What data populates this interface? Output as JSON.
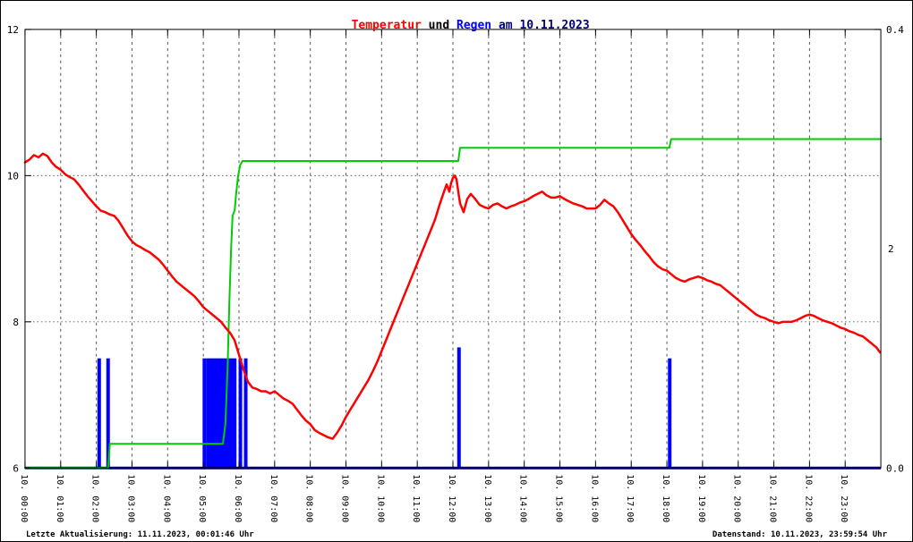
{
  "page": {
    "title_parts": [
      {
        "text": "Temperatur",
        "color": "#ff0000"
      },
      {
        "text": " und ",
        "color": "#000000"
      },
      {
        "text": "Regen",
        "color": "#0000ff"
      },
      {
        "text": " am 10.11.2023",
        "color": "#000080"
      }
    ],
    "footer_left": "Letzte Aktualisierung: 11.11.2023, 00:01:46 Uhr",
    "footer_right": "Datenstand: 10.11.2023, 23:59:54 Uhr"
  },
  "chart_data": {
    "type": "line",
    "title": "Temperatur und Regen am 10.11.2023",
    "grid": true,
    "legend": "none",
    "baseline_color": "#000080",
    "x": {
      "range_hours": [
        0,
        24
      ],
      "tick_labels": [
        "10. 00:00",
        "10. 01:00",
        "10. 02:00",
        "10. 03:00",
        "10. 04:00",
        "10. 05:00",
        "10. 06:00",
        "10. 07:00",
        "10. 08:00",
        "10. 09:00",
        "10. 10:00",
        "10. 11:00",
        "10. 12:00",
        "10. 13:00",
        "10. 14:00",
        "10. 15:00",
        "10. 16:00",
        "10. 17:00",
        "10. 18:00",
        "10. 19:00",
        "10. 20:00",
        "10. 21:00",
        "10. 22:00",
        "10. 23:00"
      ]
    },
    "y_left": {
      "range": [
        6,
        12
      ],
      "ticks": [
        6,
        8,
        10,
        12
      ],
      "grid": [
        8,
        10
      ]
    },
    "y_right": {
      "range_rain": [
        0,
        0.4
      ],
      "tick_top": "0.4",
      "tick_bottom": "0.0",
      "range_cumulative": [
        0,
        4
      ],
      "cumulative_tick": {
        "value": 2,
        "label": "2"
      }
    },
    "series": [
      {
        "name": "Regen",
        "kind": "bar",
        "axis": "right_rain",
        "color": "#0000ff",
        "bar_width_minutes": 6,
        "points": [
          [
            2.08,
            0.1
          ],
          [
            2.33,
            0.1
          ],
          [
            5.03,
            0.1
          ],
          [
            5.13,
            0.1
          ],
          [
            5.21,
            0.1
          ],
          [
            5.29,
            0.1
          ],
          [
            5.38,
            0.1
          ],
          [
            5.46,
            0.1
          ],
          [
            5.54,
            0.1
          ],
          [
            5.63,
            0.1
          ],
          [
            5.71,
            0.1
          ],
          [
            5.79,
            0.1
          ],
          [
            5.88,
            0.1
          ],
          [
            6.04,
            0.1
          ],
          [
            6.19,
            0.1
          ],
          [
            12.17,
            0.11
          ],
          [
            18.08,
            0.1
          ]
        ]
      },
      {
        "name": "Regen kumuliert",
        "kind": "step",
        "axis": "right_cumulative",
        "color": "#00cc00",
        "points": [
          [
            0,
            0
          ],
          [
            2.33,
            0
          ],
          [
            2.38,
            0.22
          ],
          [
            5.55,
            0.22
          ],
          [
            5.62,
            0.4
          ],
          [
            5.68,
            0.9
          ],
          [
            5.73,
            1.5
          ],
          [
            5.78,
            2.0
          ],
          [
            5.82,
            2.3
          ],
          [
            5.88,
            2.35
          ],
          [
            5.92,
            2.5
          ],
          [
            5.97,
            2.65
          ],
          [
            6.03,
            2.76
          ],
          [
            6.1,
            2.8
          ],
          [
            12.15,
            2.8
          ],
          [
            12.2,
            2.92
          ],
          [
            18.07,
            2.92
          ],
          [
            18.12,
            3.0
          ],
          [
            24,
            3.0
          ]
        ]
      },
      {
        "name": "Temperatur",
        "kind": "line",
        "axis": "left",
        "color": "#ff0000",
        "points": [
          [
            0,
            10.18
          ],
          [
            0.125,
            10.22
          ],
          [
            0.25,
            10.28
          ],
          [
            0.375,
            10.25
          ],
          [
            0.5,
            10.3
          ],
          [
            0.625,
            10.27
          ],
          [
            0.75,
            10.18
          ],
          [
            0.875,
            10.12
          ],
          [
            1,
            10.08
          ],
          [
            1.125,
            10.02
          ],
          [
            1.25,
            9.98
          ],
          [
            1.375,
            9.95
          ],
          [
            1.5,
            9.88
          ],
          [
            1.625,
            9.8
          ],
          [
            1.75,
            9.72
          ],
          [
            1.875,
            9.65
          ],
          [
            2,
            9.58
          ],
          [
            2.125,
            9.52
          ],
          [
            2.25,
            9.5
          ],
          [
            2.375,
            9.47
          ],
          [
            2.5,
            9.45
          ],
          [
            2.625,
            9.38
          ],
          [
            2.75,
            9.28
          ],
          [
            2.875,
            9.18
          ],
          [
            3,
            9.1
          ],
          [
            3.125,
            9.05
          ],
          [
            3.25,
            9.02
          ],
          [
            3.375,
            8.98
          ],
          [
            3.5,
            8.95
          ],
          [
            3.625,
            8.9
          ],
          [
            3.75,
            8.85
          ],
          [
            3.875,
            8.78
          ],
          [
            4,
            8.7
          ],
          [
            4.125,
            8.62
          ],
          [
            4.25,
            8.55
          ],
          [
            4.375,
            8.5
          ],
          [
            4.5,
            8.45
          ],
          [
            4.625,
            8.4
          ],
          [
            4.75,
            8.35
          ],
          [
            4.875,
            8.28
          ],
          [
            5,
            8.2
          ],
          [
            5.125,
            8.15
          ],
          [
            5.25,
            8.1
          ],
          [
            5.375,
            8.05
          ],
          [
            5.5,
            8
          ],
          [
            5.625,
            7.92
          ],
          [
            5.75,
            7.85
          ],
          [
            5.875,
            7.75
          ],
          [
            6,
            7.55
          ],
          [
            6.125,
            7.35
          ],
          [
            6.25,
            7.18
          ],
          [
            6.375,
            7.1
          ],
          [
            6.5,
            7.08
          ],
          [
            6.625,
            7.05
          ],
          [
            6.75,
            7.05
          ],
          [
            6.875,
            7.02
          ],
          [
            7,
            7.05
          ],
          [
            7.125,
            7
          ],
          [
            7.25,
            6.95
          ],
          [
            7.375,
            6.92
          ],
          [
            7.5,
            6.88
          ],
          [
            7.625,
            6.8
          ],
          [
            7.75,
            6.72
          ],
          [
            7.875,
            6.65
          ],
          [
            8,
            6.6
          ],
          [
            8.125,
            6.52
          ],
          [
            8.25,
            6.48
          ],
          [
            8.375,
            6.45
          ],
          [
            8.5,
            6.42
          ],
          [
            8.625,
            6.4
          ],
          [
            8.75,
            6.48
          ],
          [
            8.875,
            6.58
          ],
          [
            9,
            6.7
          ],
          [
            9.125,
            6.8
          ],
          [
            9.25,
            6.9
          ],
          [
            9.375,
            7
          ],
          [
            9.5,
            7.1
          ],
          [
            9.625,
            7.2
          ],
          [
            9.75,
            7.32
          ],
          [
            9.875,
            7.45
          ],
          [
            10,
            7.6
          ],
          [
            10.125,
            7.75
          ],
          [
            10.25,
            7.9
          ],
          [
            10.375,
            8.05
          ],
          [
            10.5,
            8.2
          ],
          [
            10.625,
            8.35
          ],
          [
            10.75,
            8.5
          ],
          [
            10.875,
            8.65
          ],
          [
            11,
            8.8
          ],
          [
            11.125,
            8.95
          ],
          [
            11.25,
            9.1
          ],
          [
            11.375,
            9.25
          ],
          [
            11.5,
            9.4
          ],
          [
            11.625,
            9.6
          ],
          [
            11.75,
            9.78
          ],
          [
            11.825,
            9.88
          ],
          [
            11.9,
            9.78
          ],
          [
            11.95,
            9.9
          ],
          [
            12,
            9.97
          ],
          [
            12.05,
            10
          ],
          [
            12.1,
            9.95
          ],
          [
            12.15,
            9.78
          ],
          [
            12.2,
            9.62
          ],
          [
            12.3,
            9.5
          ],
          [
            12.4,
            9.68
          ],
          [
            12.5,
            9.75
          ],
          [
            12.625,
            9.68
          ],
          [
            12.75,
            9.6
          ],
          [
            12.875,
            9.57
          ],
          [
            13,
            9.55
          ],
          [
            13.125,
            9.6
          ],
          [
            13.25,
            9.62
          ],
          [
            13.375,
            9.58
          ],
          [
            13.5,
            9.55
          ],
          [
            13.625,
            9.58
          ],
          [
            13.75,
            9.6
          ],
          [
            13.875,
            9.63
          ],
          [
            14,
            9.65
          ],
          [
            14.125,
            9.68
          ],
          [
            14.25,
            9.72
          ],
          [
            14.375,
            9.75
          ],
          [
            14.5,
            9.78
          ],
          [
            14.625,
            9.73
          ],
          [
            14.75,
            9.7
          ],
          [
            14.875,
            9.7
          ],
          [
            15,
            9.72
          ],
          [
            15.125,
            9.68
          ],
          [
            15.25,
            9.65
          ],
          [
            15.375,
            9.62
          ],
          [
            15.5,
            9.6
          ],
          [
            15.625,
            9.58
          ],
          [
            15.75,
            9.55
          ],
          [
            15.875,
            9.55
          ],
          [
            16,
            9.55
          ],
          [
            16.125,
            9.6
          ],
          [
            16.25,
            9.67
          ],
          [
            16.375,
            9.62
          ],
          [
            16.5,
            9.58
          ],
          [
            16.625,
            9.5
          ],
          [
            16.75,
            9.4
          ],
          [
            16.875,
            9.3
          ],
          [
            17,
            9.2
          ],
          [
            17.125,
            9.12
          ],
          [
            17.25,
            9.05
          ],
          [
            17.375,
            8.97
          ],
          [
            17.5,
            8.9
          ],
          [
            17.625,
            8.82
          ],
          [
            17.75,
            8.76
          ],
          [
            17.875,
            8.72
          ],
          [
            18,
            8.7
          ],
          [
            18.125,
            8.65
          ],
          [
            18.25,
            8.6
          ],
          [
            18.375,
            8.57
          ],
          [
            18.5,
            8.55
          ],
          [
            18.625,
            8.58
          ],
          [
            18.75,
            8.6
          ],
          [
            18.875,
            8.62
          ],
          [
            19,
            8.6
          ],
          [
            19.125,
            8.57
          ],
          [
            19.25,
            8.55
          ],
          [
            19.375,
            8.52
          ],
          [
            19.5,
            8.5
          ],
          [
            19.625,
            8.45
          ],
          [
            19.75,
            8.4
          ],
          [
            19.875,
            8.35
          ],
          [
            20,
            8.3
          ],
          [
            20.125,
            8.25
          ],
          [
            20.25,
            8.2
          ],
          [
            20.375,
            8.15
          ],
          [
            20.5,
            8.1
          ],
          [
            20.625,
            8.07
          ],
          [
            20.75,
            8.05
          ],
          [
            20.875,
            8.02
          ],
          [
            21,
            8
          ],
          [
            21.125,
            7.98
          ],
          [
            21.25,
            8
          ],
          [
            21.375,
            8
          ],
          [
            21.5,
            8
          ],
          [
            21.625,
            8.02
          ],
          [
            21.75,
            8.05
          ],
          [
            21.875,
            8.08
          ],
          [
            22,
            8.1
          ],
          [
            22.125,
            8.08
          ],
          [
            22.25,
            8.05
          ],
          [
            22.375,
            8.02
          ],
          [
            22.5,
            8
          ],
          [
            22.625,
            7.98
          ],
          [
            22.75,
            7.95
          ],
          [
            22.875,
            7.92
          ],
          [
            23,
            7.9
          ],
          [
            23.125,
            7.87
          ],
          [
            23.25,
            7.85
          ],
          [
            23.375,
            7.82
          ],
          [
            23.5,
            7.8
          ],
          [
            23.625,
            7.75
          ],
          [
            23.75,
            7.7
          ],
          [
            23.875,
            7.65
          ],
          [
            23.98,
            7.58
          ]
        ]
      }
    ]
  }
}
